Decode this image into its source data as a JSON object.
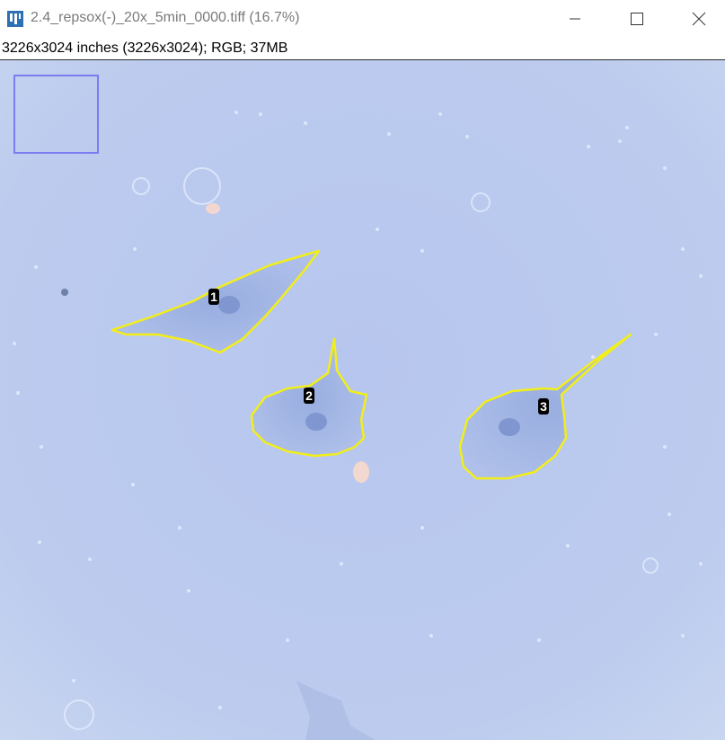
{
  "window": {
    "title": "2.4_repsox(-)_20x_5min_0000.tiff (16.7%)",
    "icon": "imagej-icon",
    "controls": [
      "minimize",
      "maximize",
      "close"
    ]
  },
  "info_bar": {
    "text": "3226x3024 inches (3226x3024); RGB; 37MB"
  },
  "image": {
    "description_colors": {
      "background": "#b9c8ee",
      "roi_outline": "#f2ee1a",
      "navigator": "#7a7cf0"
    },
    "rois": [
      {
        "label": "1"
      },
      {
        "label": "2"
      },
      {
        "label": "3"
      }
    ]
  }
}
